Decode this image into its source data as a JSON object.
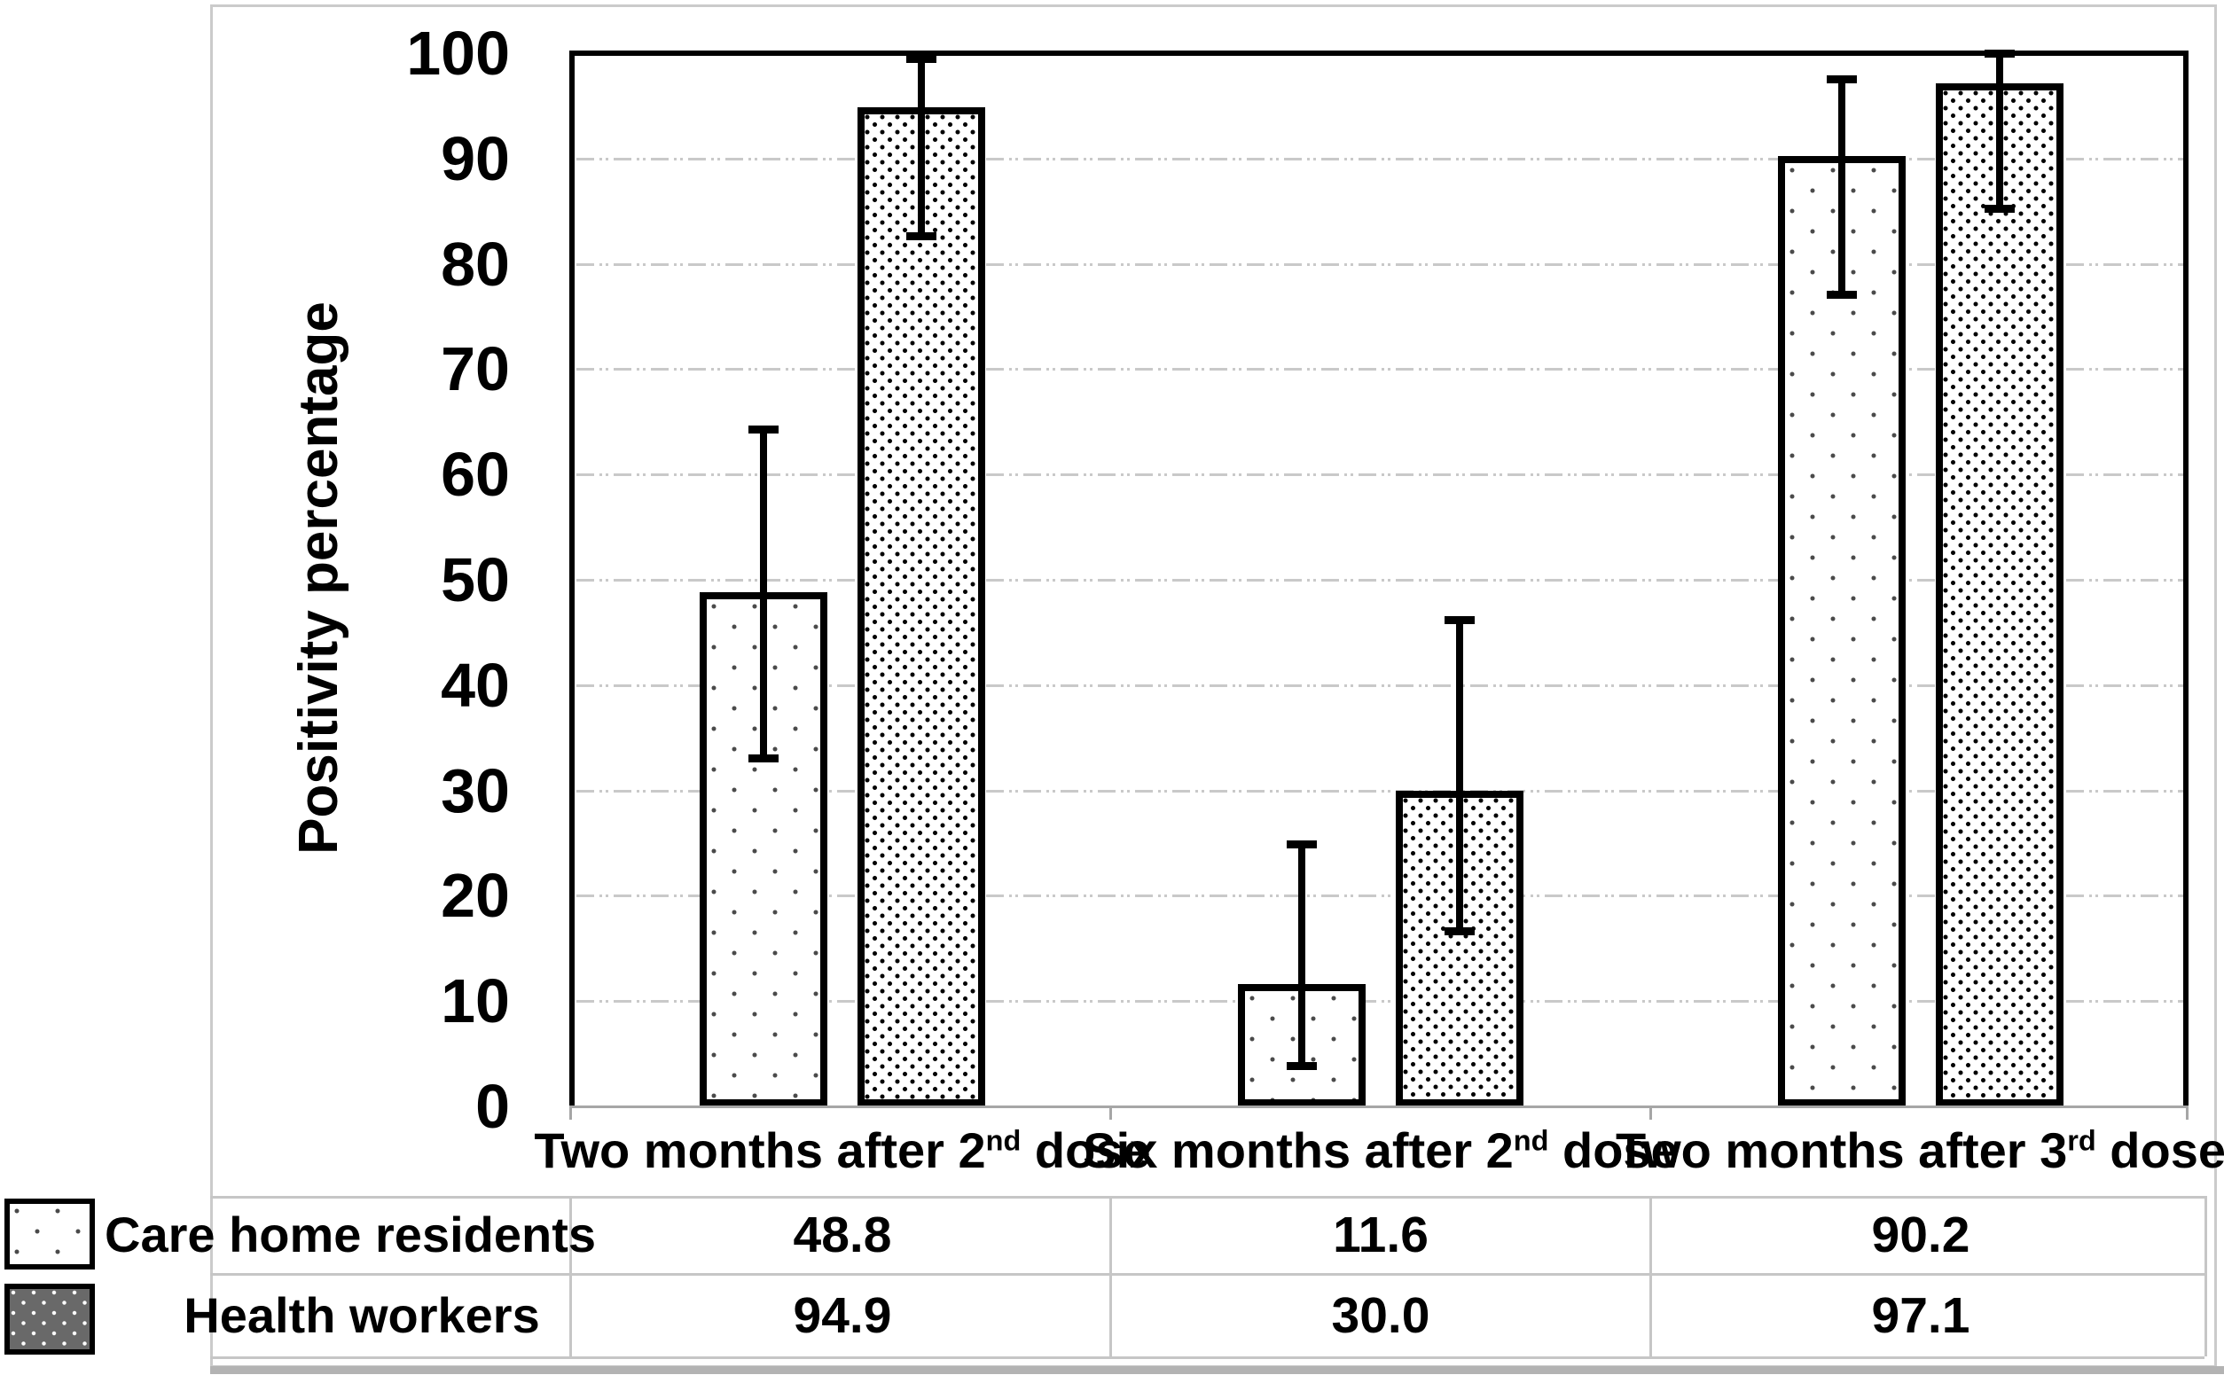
{
  "figure": {
    "kind": "grouped bar chart with error bars and data table legend"
  },
  "chart_data": {
    "type": "bar",
    "title": "",
    "xlabel": "",
    "ylabel": "Positivity percentage",
    "ylim": [
      0,
      100
    ],
    "yticks": [
      0,
      10,
      20,
      30,
      40,
      50,
      60,
      70,
      80,
      90,
      100
    ],
    "grid": "horizontal dash-dot gridlines",
    "legend_position": "data table below chart with pattern keys",
    "error_bars": "vertical with caps, estimated 95% CI read from pixels",
    "categories": [
      {
        "prefix": "Two months after 2",
        "sup": "nd",
        "suffix": " dose",
        "full": "Two months after 2nd dose"
      },
      {
        "prefix": "Six months after 2",
        "sup": "nd",
        "suffix": " dose",
        "full": "Six months after 2nd dose"
      },
      {
        "prefix": "Two months after 3",
        "sup": "rd",
        "suffix": " dose",
        "full": "Two months after 3rd dose"
      }
    ],
    "series": [
      {
        "name": "Care home residents",
        "values": [
          48.8,
          11.6,
          90.2
        ],
        "display_values": [
          "48.8",
          "11.6",
          "90.2"
        ],
        "error_low": [
          33.0,
          3.8,
          77.0
        ],
        "error_high": [
          64.3,
          24.9,
          97.6
        ],
        "pattern": "sparse dark dots on white",
        "legend_swatch": "white with dark dots"
      },
      {
        "name": "Health workers",
        "values": [
          94.9,
          30.0,
          97.1
        ],
        "display_values": [
          "94.9",
          "30.0",
          "97.1"
        ],
        "error_low": [
          82.6,
          16.6,
          85.2
        ],
        "error_high": [
          99.5,
          46.2,
          100.0
        ],
        "pattern": "dense black dots on white",
        "legend_swatch": "dark gray with white dots"
      }
    ],
    "colors": {
      "bar_border": "#000000",
      "gridline": "#c9c9c9",
      "axis_line": "#a6a6a6",
      "figure_frame": "#cbcbcb",
      "table_line": "#c6c6c6",
      "text": "#000000",
      "care_dot": "#4a4a4a",
      "health_dot": "#000000",
      "health_swatch_bg": "#696969"
    }
  }
}
